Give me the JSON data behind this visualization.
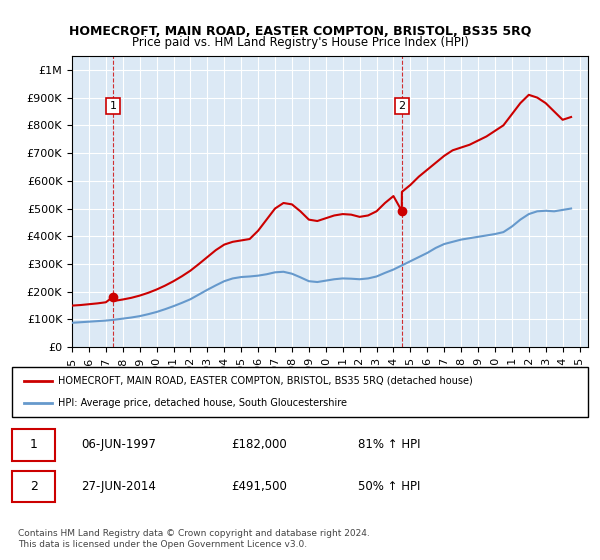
{
  "title": "HOMECROFT, MAIN ROAD, EASTER COMPTON, BRISTOL, BS35 5RQ",
  "subtitle": "Price paid vs. HM Land Registry's House Price Index (HPI)",
  "legend_line1": "HOMECROFT, MAIN ROAD, EASTER COMPTON, BRISTOL, BS35 5RQ (detached house)",
  "legend_line2": "HPI: Average price, detached house, South Gloucestershire",
  "transactions": [
    {
      "num": 1,
      "date": "06-JUN-1997",
      "price": "£182,000",
      "hpi": "81% ↑ HPI",
      "year": 1997.44
    },
    {
      "num": 2,
      "date": "27-JUN-2014",
      "price": "£491,500",
      "hpi": "50% ↑ HPI",
      "year": 2014.49
    }
  ],
  "copyright": "Contains HM Land Registry data © Crown copyright and database right 2024.\nThis data is licensed under the Open Government Licence v3.0.",
  "plot_bg_color": "#dce9f5",
  "red_line_color": "#cc0000",
  "blue_line_color": "#6699cc",
  "vline_color": "#cc0000",
  "marker_color": "#cc0000",
  "ylim": [
    0,
    1050000
  ],
  "xlim_start": 1995.0,
  "xlim_end": 2025.5,
  "hpi_x": [
    1995.0,
    1995.5,
    1996.0,
    1996.5,
    1997.0,
    1997.5,
    1998.0,
    1998.5,
    1999.0,
    1999.5,
    2000.0,
    2000.5,
    2001.0,
    2001.5,
    2002.0,
    2002.5,
    2003.0,
    2003.5,
    2004.0,
    2004.5,
    2005.0,
    2005.5,
    2006.0,
    2006.5,
    2007.0,
    2007.5,
    2008.0,
    2008.5,
    2009.0,
    2009.5,
    2010.0,
    2010.5,
    2011.0,
    2011.5,
    2012.0,
    2012.5,
    2013.0,
    2013.5,
    2014.0,
    2014.5,
    2015.0,
    2015.5,
    2016.0,
    2016.5,
    2017.0,
    2017.5,
    2018.0,
    2018.5,
    2019.0,
    2019.5,
    2020.0,
    2020.5,
    2021.0,
    2021.5,
    2022.0,
    2022.5,
    2023.0,
    2023.5,
    2024.0,
    2024.5
  ],
  "hpi_y": [
    88000,
    90000,
    92000,
    94000,
    96000,
    99000,
    103000,
    107000,
    112000,
    119000,
    127000,
    137000,
    148000,
    160000,
    173000,
    190000,
    207000,
    223000,
    238000,
    248000,
    253000,
    255000,
    258000,
    263000,
    270000,
    272000,
    265000,
    252000,
    238000,
    235000,
    240000,
    245000,
    248000,
    247000,
    245000,
    248000,
    255000,
    268000,
    280000,
    295000,
    310000,
    325000,
    340000,
    358000,
    372000,
    380000,
    388000,
    393000,
    398000,
    403000,
    408000,
    415000,
    435000,
    460000,
    480000,
    490000,
    492000,
    490000,
    495000,
    500000
  ],
  "red_x": [
    1995.0,
    1995.5,
    1996.0,
    1996.5,
    1997.0,
    1997.44,
    1997.5,
    1998.0,
    1998.5,
    1999.0,
    1999.5,
    2000.0,
    2000.5,
    2001.0,
    2001.5,
    2002.0,
    2002.5,
    2003.0,
    2003.5,
    2004.0,
    2004.5,
    2005.0,
    2005.5,
    2006.0,
    2006.5,
    2007.0,
    2007.5,
    2008.0,
    2008.5,
    2009.0,
    2009.5,
    2010.0,
    2010.5,
    2011.0,
    2011.5,
    2012.0,
    2012.5,
    2013.0,
    2013.5,
    2014.0,
    2014.49,
    2014.5,
    2015.0,
    2015.5,
    2016.0,
    2016.5,
    2017.0,
    2017.5,
    2018.0,
    2018.5,
    2019.0,
    2019.5,
    2020.0,
    2020.5,
    2021.0,
    2021.5,
    2022.0,
    2022.5,
    2023.0,
    2023.5,
    2024.0,
    2024.5
  ],
  "red_y": [
    150000,
    152000,
    155000,
    158000,
    162000,
    182000,
    167000,
    172000,
    178000,
    186000,
    196000,
    208000,
    222000,
    238000,
    256000,
    276000,
    300000,
    325000,
    350000,
    370000,
    380000,
    385000,
    390000,
    420000,
    460000,
    500000,
    520000,
    515000,
    490000,
    460000,
    455000,
    465000,
    475000,
    480000,
    478000,
    470000,
    475000,
    490000,
    520000,
    545000,
    491500,
    560000,
    585000,
    615000,
    640000,
    665000,
    690000,
    710000,
    720000,
    730000,
    745000,
    760000,
    780000,
    800000,
    840000,
    880000,
    910000,
    900000,
    880000,
    850000,
    820000,
    830000
  ]
}
